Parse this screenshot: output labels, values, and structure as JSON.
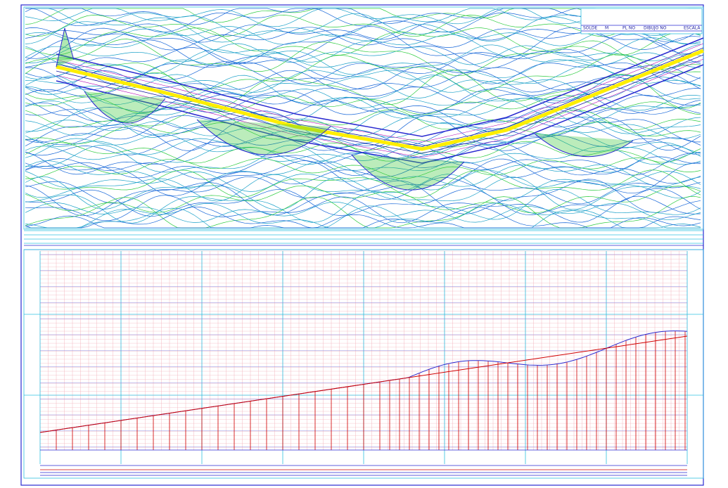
{
  "title_block": [
    "SOLDE",
    "M",
    "PL NO",
    "DIBUJO NO",
    "ESCALA"
  ]
}
